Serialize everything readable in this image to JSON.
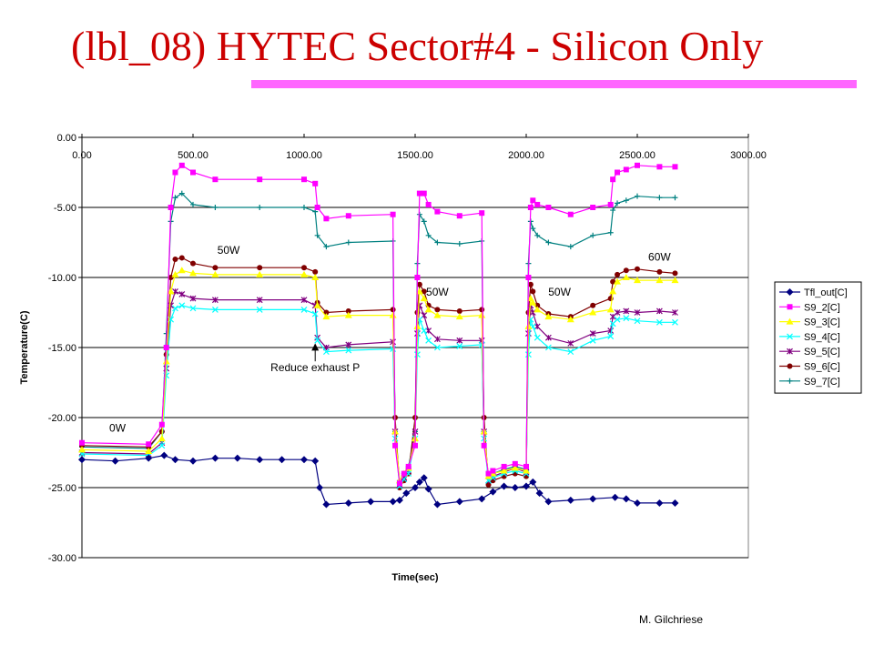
{
  "slide": {
    "title": "(lbl_08) HYTEC Sector#4 - Silicon Only",
    "footer": "M. Gilchriese",
    "accent_color": "#ff66ff",
    "title_color": "#cc0000"
  },
  "chart_data": {
    "type": "line",
    "title": "",
    "xlabel": "Time(sec)",
    "ylabel": "Temperature(C)",
    "xlim": [
      0,
      3000
    ],
    "ylim": [
      -30,
      0
    ],
    "x_ticks": [
      "0.00",
      "500.00",
      "1000.00",
      "1500.00",
      "2000.00",
      "2500.00",
      "3000.00"
    ],
    "y_ticks": [
      "0.00",
      "-5.00",
      "-10.00",
      "-15.00",
      "-20.00",
      "-25.00",
      "-30.00"
    ],
    "grid": "horizontal",
    "legend_position": "right",
    "annotations": [
      {
        "text": "0W",
        "x": 160,
        "y": -21.0
      },
      {
        "text": "50W",
        "x": 660,
        "y": -8.3
      },
      {
        "text": "Reduce exhaust P",
        "x": 1050,
        "y": -16.7,
        "arrow_to": {
          "x": 1050,
          "y": -14.7
        }
      },
      {
        "text": "50W",
        "x": 1600,
        "y": -11.3
      },
      {
        "text": "50W",
        "x": 2150,
        "y": -11.3
      },
      {
        "text": "60W",
        "x": 2600,
        "y": -8.8
      }
    ],
    "series": [
      {
        "name": "Tfl_out[C]",
        "color": "#000080",
        "marker": "diamond",
        "x": [
          0,
          150,
          300,
          370,
          420,
          500,
          600,
          700,
          800,
          900,
          1000,
          1050,
          1070,
          1100,
          1200,
          1300,
          1400,
          1430,
          1460,
          1500,
          1520,
          1540,
          1560,
          1600,
          1700,
          1800,
          1850,
          1900,
          1950,
          2000,
          2030,
          2060,
          2100,
          2200,
          2300,
          2400,
          2450,
          2500,
          2600,
          2670
        ],
        "y": [
          -23.0,
          -23.1,
          -22.9,
          -22.7,
          -23.0,
          -23.1,
          -22.9,
          -22.9,
          -23.0,
          -23.0,
          -23.0,
          -23.1,
          -25.0,
          -26.2,
          -26.1,
          -26.0,
          -26.0,
          -25.9,
          -25.4,
          -25.0,
          -24.6,
          -24.3,
          -25.1,
          -26.2,
          -26.0,
          -25.8,
          -25.3,
          -24.9,
          -25.0,
          -24.9,
          -24.6,
          -25.4,
          -26.0,
          -25.9,
          -25.8,
          -25.7,
          -25.8,
          -26.1,
          -26.1,
          -26.1
        ]
      },
      {
        "name": "S9_2[C]",
        "color": "#ff00ff",
        "marker": "square",
        "x": [
          0,
          300,
          360,
          380,
          400,
          420,
          450,
          500,
          600,
          800,
          1000,
          1050,
          1060,
          1100,
          1200,
          1400,
          1410,
          1430,
          1450,
          1470,
          1500,
          1510,
          1520,
          1540,
          1560,
          1600,
          1700,
          1800,
          1810,
          1830,
          1850,
          1900,
          1950,
          2000,
          2010,
          2020,
          2030,
          2050,
          2100,
          2200,
          2300,
          2380,
          2390,
          2410,
          2450,
          2500,
          2600,
          2670
        ],
        "y": [
          -21.8,
          -21.9,
          -20.5,
          -15.0,
          -5.0,
          -2.5,
          -2.0,
          -2.5,
          -3.0,
          -3.0,
          -3.0,
          -3.3,
          -5.0,
          -5.8,
          -5.6,
          -5.5,
          -22.0,
          -24.7,
          -24.0,
          -23.5,
          -22.0,
          -10.0,
          -4.0,
          -4.0,
          -4.8,
          -5.3,
          -5.6,
          -5.4,
          -22.0,
          -24.0,
          -23.8,
          -23.5,
          -23.3,
          -23.5,
          -10.0,
          -5.0,
          -4.5,
          -4.8,
          -5.0,
          -5.5,
          -5.0,
          -4.8,
          -3.0,
          -2.5,
          -2.3,
          -2.0,
          -2.1,
          -2.1
        ]
      },
      {
        "name": "S9_3[C]",
        "color": "#ffff00",
        "marker": "triangle",
        "x": [
          0,
          300,
          360,
          380,
          400,
          420,
          450,
          500,
          600,
          800,
          1000,
          1050,
          1060,
          1100,
          1200,
          1400,
          1410,
          1430,
          1450,
          1470,
          1500,
          1510,
          1520,
          1540,
          1560,
          1600,
          1700,
          1800,
          1810,
          1830,
          1850,
          1900,
          1950,
          2000,
          2010,
          2020,
          2030,
          2050,
          2100,
          2200,
          2300,
          2380,
          2390,
          2410,
          2450,
          2500,
          2600,
          2670
        ],
        "y": [
          -22.3,
          -22.4,
          -21.5,
          -16.0,
          -11.0,
          -9.8,
          -9.5,
          -9.7,
          -9.8,
          -9.8,
          -9.8,
          -10.0,
          -12.0,
          -12.8,
          -12.7,
          -12.7,
          -21.0,
          -24.5,
          -24.0,
          -23.6,
          -21.5,
          -13.5,
          -11.0,
          -11.5,
          -12.3,
          -12.7,
          -12.8,
          -12.7,
          -21.0,
          -24.2,
          -24.0,
          -23.8,
          -23.6,
          -23.8,
          -13.5,
          -11.5,
          -11.8,
          -12.3,
          -12.8,
          -13.0,
          -12.5,
          -12.3,
          -11.0,
          -10.3,
          -10.0,
          -10.2,
          -10.2,
          -10.2
        ]
      },
      {
        "name": "S9_4[C]",
        "color": "#00ffff",
        "marker": "x",
        "x": [
          0,
          300,
          360,
          380,
          400,
          420,
          450,
          500,
          600,
          800,
          1000,
          1050,
          1060,
          1100,
          1200,
          1400,
          1410,
          1430,
          1450,
          1470,
          1500,
          1510,
          1520,
          1540,
          1560,
          1600,
          1700,
          1800,
          1810,
          1830,
          1850,
          1900,
          1950,
          2000,
          2010,
          2020,
          2030,
          2050,
          2100,
          2200,
          2300,
          2380,
          2390,
          2410,
          2450,
          2500,
          2600,
          2670
        ],
        "y": [
          -22.6,
          -22.7,
          -22.0,
          -17.0,
          -13.0,
          -12.2,
          -12.0,
          -12.2,
          -12.3,
          -12.3,
          -12.3,
          -12.6,
          -14.5,
          -15.3,
          -15.2,
          -15.1,
          -21.5,
          -24.9,
          -24.4,
          -24.0,
          -21.5,
          -15.5,
          -13.0,
          -13.8,
          -14.5,
          -15.0,
          -14.9,
          -14.8,
          -21.5,
          -24.5,
          -24.3,
          -24.0,
          -23.8,
          -24.0,
          -15.5,
          -13.0,
          -13.5,
          -14.3,
          -15.0,
          -15.3,
          -14.5,
          -14.2,
          -13.3,
          -13.0,
          -12.9,
          -13.1,
          -13.2,
          -13.2
        ]
      },
      {
        "name": "S9_5[C]",
        "color": "#800080",
        "marker": "star",
        "x": [
          0,
          300,
          360,
          380,
          400,
          420,
          450,
          500,
          600,
          800,
          1000,
          1050,
          1060,
          1100,
          1200,
          1400,
          1410,
          1430,
          1450,
          1470,
          1500,
          1510,
          1520,
          1540,
          1560,
          1600,
          1700,
          1800,
          1810,
          1830,
          1850,
          1900,
          1950,
          2000,
          2010,
          2020,
          2030,
          2050,
          2100,
          2200,
          2300,
          2380,
          2390,
          2410,
          2450,
          2500,
          2600,
          2670
        ],
        "y": [
          -22.5,
          -22.6,
          -21.8,
          -16.5,
          -12.0,
          -11.0,
          -11.2,
          -11.5,
          -11.6,
          -11.6,
          -11.6,
          -12.0,
          -14.3,
          -15.0,
          -14.8,
          -14.6,
          -21.0,
          -24.8,
          -24.3,
          -23.8,
          -21.0,
          -14.0,
          -12.0,
          -12.7,
          -13.8,
          -14.4,
          -14.5,
          -14.5,
          -21.0,
          -24.5,
          -24.2,
          -23.9,
          -23.6,
          -23.9,
          -14.0,
          -12.0,
          -12.5,
          -13.5,
          -14.3,
          -14.7,
          -14.0,
          -13.8,
          -12.8,
          -12.5,
          -12.4,
          -12.5,
          -12.4,
          -12.5
        ]
      },
      {
        "name": "S9_6[C]",
        "color": "#800000",
        "marker": "circle",
        "x": [
          0,
          300,
          360,
          380,
          400,
          420,
          450,
          500,
          600,
          800,
          1000,
          1050,
          1060,
          1100,
          1200,
          1400,
          1410,
          1430,
          1450,
          1470,
          1500,
          1510,
          1520,
          1540,
          1560,
          1600,
          1700,
          1800,
          1810,
          1830,
          1850,
          1900,
          1950,
          2000,
          2010,
          2020,
          2030,
          2050,
          2100,
          2200,
          2300,
          2380,
          2390,
          2410,
          2450,
          2500,
          2600,
          2670
        ],
        "y": [
          -22.0,
          -22.1,
          -21.0,
          -15.5,
          -10.0,
          -8.7,
          -8.6,
          -9.0,
          -9.3,
          -9.3,
          -9.3,
          -9.6,
          -11.8,
          -12.5,
          -12.4,
          -12.3,
          -20.0,
          -25.0,
          -24.5,
          -24.0,
          -20.0,
          -12.5,
          -10.5,
          -11.0,
          -12.0,
          -12.3,
          -12.4,
          -12.3,
          -20.0,
          -24.8,
          -24.5,
          -24.2,
          -24.0,
          -24.2,
          -12.5,
          -10.5,
          -11.0,
          -12.0,
          -12.6,
          -12.8,
          -12.0,
          -11.5,
          -10.3,
          -9.8,
          -9.5,
          -9.4,
          -9.6,
          -9.7
        ]
      },
      {
        "name": "S9_7[C]",
        "color": "#008080",
        "marker": "plus",
        "x": [
          0,
          300,
          360,
          380,
          400,
          420,
          450,
          500,
          600,
          800,
          1000,
          1050,
          1060,
          1100,
          1200,
          1400,
          1410,
          1430,
          1450,
          1470,
          1500,
          1510,
          1520,
          1540,
          1560,
          1600,
          1700,
          1800,
          1810,
          1830,
          1850,
          1900,
          1950,
          2000,
          2010,
          2020,
          2030,
          2050,
          2100,
          2200,
          2300,
          2380,
          2390,
          2410,
          2450,
          2500,
          2600,
          2670
        ],
        "y": [
          -22.1,
          -22.2,
          -21.0,
          -14.0,
          -6.0,
          -4.3,
          -4.0,
          -4.8,
          -5.0,
          -5.0,
          -5.0,
          -5.3,
          -7.0,
          -7.8,
          -7.5,
          -7.4,
          -21.0,
          -24.5,
          -24.0,
          -23.5,
          -21.0,
          -9.0,
          -5.5,
          -6.0,
          -7.0,
          -7.5,
          -7.6,
          -7.4,
          -21.0,
          -24.3,
          -24.0,
          -23.7,
          -23.5,
          -23.7,
          -9.0,
          -6.0,
          -6.5,
          -7.0,
          -7.5,
          -7.8,
          -7.0,
          -6.8,
          -5.2,
          -4.7,
          -4.5,
          -4.2,
          -4.3,
          -4.3
        ]
      }
    ]
  }
}
